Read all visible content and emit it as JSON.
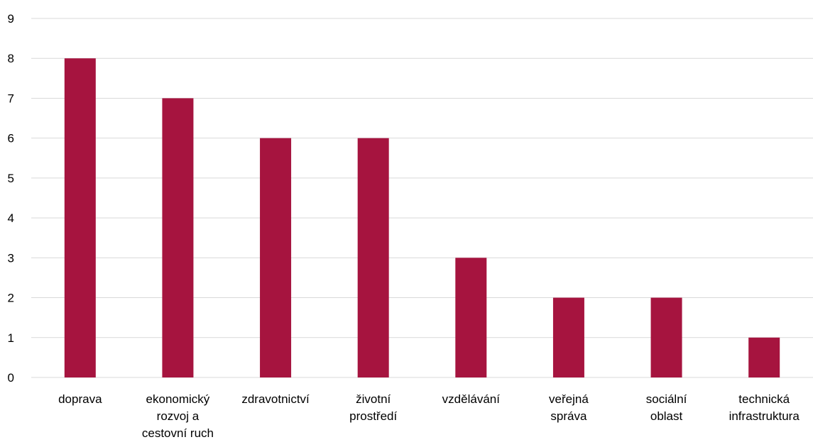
{
  "chart_data": {
    "type": "bar",
    "categories": [
      [
        "doprava"
      ],
      [
        "ekonomický",
        "rozvoj a",
        "cestovní ruch"
      ],
      [
        "zdravotnictví"
      ],
      [
        "životní",
        "prostředí"
      ],
      [
        "vzdělávání"
      ],
      [
        "veřejná",
        "správa"
      ],
      [
        "sociální",
        "oblast"
      ],
      [
        "technická",
        "infrastruktura"
      ]
    ],
    "values": [
      8,
      7,
      6,
      6,
      3,
      2,
      2,
      1
    ],
    "ylim": [
      0,
      9
    ],
    "yticks": [
      "0",
      "1",
      "2",
      "3",
      "4",
      "5",
      "6",
      "7",
      "8",
      "9"
    ],
    "title": "",
    "xlabel": "",
    "ylabel": "",
    "grid": true,
    "legend": "none",
    "bar_color": "#a6143f",
    "grid_color": "#d9d9d9"
  }
}
